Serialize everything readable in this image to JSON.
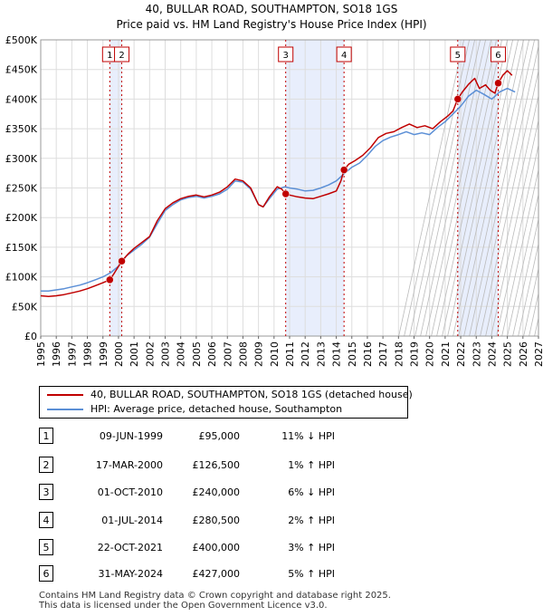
{
  "colors": {
    "price_line": "#c00000",
    "hpi_line": "#5b8fd6",
    "shade": "#e8eefc",
    "marker_fill": "#c00000"
  },
  "chart_data": {
    "type": "line",
    "title": "40, BULLAR ROAD, SOUTHAMPTON, SO18 1GS",
    "subtitle": "Price paid vs. HM Land Registry's House Price Index (HPI)",
    "xlim": [
      1995,
      2027
    ],
    "ylim": [
      0,
      500000
    ],
    "y_ticks": [
      0,
      50000,
      100000,
      150000,
      200000,
      250000,
      300000,
      350000,
      400000,
      450000,
      500000
    ],
    "y_tick_labels": [
      "£0",
      "£50K",
      "£100K",
      "£150K",
      "£200K",
      "£250K",
      "£300K",
      "£350K",
      "£400K",
      "£450K",
      "£500K"
    ],
    "x_ticks": [
      1995,
      1996,
      1997,
      1998,
      1999,
      2000,
      2001,
      2002,
      2003,
      2004,
      2005,
      2006,
      2007,
      2008,
      2009,
      2010,
      2011,
      2012,
      2013,
      2014,
      2015,
      2016,
      2017,
      2018,
      2019,
      2020,
      2021,
      2022,
      2023,
      2024,
      2025,
      2026,
      2027
    ],
    "x_tick_labels": [
      "1995",
      "1996",
      "1997",
      "1998",
      "1999",
      "2000",
      "2001",
      "2002",
      "2003",
      "2004",
      "2005",
      "2006",
      "2007",
      "2008",
      "2009",
      "2010",
      "2011",
      "2012",
      "2013",
      "2014",
      "2015",
      "2016",
      "2017",
      "2018",
      "2019",
      "2020",
      "2021",
      "2022",
      "2023",
      "2024",
      "2025",
      "2026",
      "2027"
    ],
    "grid": true,
    "forecast_start": 2025.0,
    "shaded_periods": [
      [
        1999.44,
        2000.21
      ],
      [
        2010.75,
        2014.5
      ],
      [
        2021.81,
        2024.41
      ]
    ],
    "series": [
      {
        "name": "40, BULLAR ROAD, SOUTHAMPTON, SO18 1GS (detached house)",
        "x": [
          1995.0,
          1995.5,
          1996.0,
          1996.5,
          1997.0,
          1997.5,
          1998.0,
          1998.5,
          1999.0,
          1999.44,
          1999.7,
          2000.21,
          2000.6,
          2001.0,
          2001.5,
          2002.0,
          2002.5,
          2003.0,
          2003.5,
          2004.0,
          2004.5,
          2005.0,
          2005.5,
          2006.0,
          2006.5,
          2007.0,
          2007.5,
          2008.0,
          2008.5,
          2009.0,
          2009.3,
          2009.7,
          2010.2,
          2010.5,
          2010.75,
          2011.0,
          2011.5,
          2012.0,
          2012.5,
          2013.0,
          2013.5,
          2014.0,
          2014.3,
          2014.5,
          2014.8,
          2015.2,
          2015.7,
          2016.2,
          2016.7,
          2017.2,
          2017.7,
          2018.2,
          2018.7,
          2019.2,
          2019.7,
          2020.2,
          2020.7,
          2021.2,
          2021.5,
          2021.81,
          2022.1,
          2022.5,
          2022.9,
          2023.2,
          2023.6,
          2023.9,
          2024.2,
          2024.41,
          2024.7,
          2025.0,
          2025.3
        ],
        "values": [
          68000,
          67000,
          68000,
          70000,
          73000,
          76000,
          80000,
          85000,
          90000,
          95000,
          105000,
          126500,
          138000,
          148000,
          158000,
          168000,
          195000,
          215000,
          225000,
          232000,
          236000,
          238000,
          235000,
          238000,
          243000,
          252000,
          265000,
          262000,
          250000,
          222000,
          218000,
          235000,
          252000,
          248000,
          240000,
          238000,
          235000,
          233000,
          232000,
          236000,
          240000,
          245000,
          262000,
          280500,
          290000,
          296000,
          305000,
          318000,
          335000,
          342000,
          345000,
          352000,
          358000,
          352000,
          355000,
          350000,
          362000,
          372000,
          380000,
          400000,
          412000,
          425000,
          435000,
          418000,
          424000,
          415000,
          410000,
          427000,
          440000,
          448000,
          440000
        ]
      },
      {
        "name": "HPI: Average price, detached house, Southampton",
        "x": [
          1995.0,
          1995.5,
          1996.0,
          1996.5,
          1997.0,
          1997.5,
          1998.0,
          1998.5,
          1999.0,
          1999.5,
          2000.0,
          2000.5,
          2001.0,
          2001.5,
          2002.0,
          2002.5,
          2003.0,
          2003.5,
          2004.0,
          2004.5,
          2005.0,
          2005.5,
          2006.0,
          2006.5,
          2007.0,
          2007.5,
          2008.0,
          2008.5,
          2009.0,
          2009.3,
          2009.7,
          2010.2,
          2010.7,
          2011.0,
          2011.5,
          2012.0,
          2012.5,
          2013.0,
          2013.5,
          2014.0,
          2014.5,
          2015.0,
          2015.5,
          2016.0,
          2016.5,
          2017.0,
          2017.5,
          2018.0,
          2018.5,
          2019.0,
          2019.5,
          2020.0,
          2020.5,
          2021.0,
          2021.5,
          2022.0,
          2022.5,
          2023.0,
          2023.5,
          2024.0,
          2024.5,
          2025.0,
          2025.5
        ],
        "values": [
          76000,
          76000,
          78000,
          80000,
          83000,
          86000,
          90000,
          95000,
          100000,
          107000,
          118000,
          135000,
          145000,
          155000,
          167000,
          190000,
          212000,
          222000,
          230000,
          234000,
          236000,
          233000,
          236000,
          240000,
          248000,
          262000,
          260000,
          248000,
          222000,
          218000,
          232000,
          248000,
          252000,
          250000,
          248000,
          245000,
          246000,
          250000,
          255000,
          262000,
          274000,
          285000,
          292000,
          305000,
          320000,
          330000,
          336000,
          340000,
          345000,
          340000,
          343000,
          340000,
          352000,
          362000,
          375000,
          388000,
          405000,
          415000,
          408000,
          400000,
          412000,
          418000,
          412000
        ]
      }
    ],
    "sale_points": [
      {
        "label": "1",
        "x": 1999.44,
        "value": 95000
      },
      {
        "label": "2",
        "x": 2000.21,
        "value": 126500
      },
      {
        "label": "3",
        "x": 2010.75,
        "value": 240000
      },
      {
        "label": "4",
        "x": 2014.5,
        "value": 280500
      },
      {
        "label": "5",
        "x": 2021.81,
        "value": 400000
      },
      {
        "label": "6",
        "x": 2024.41,
        "value": 427000
      }
    ]
  },
  "legend": {
    "price_label": "40, BULLAR ROAD, SOUTHAMPTON, SO18 1GS (detached house)",
    "hpi_label": "HPI: Average price, detached house, Southampton"
  },
  "sales": [
    {
      "num": "1",
      "date": "09-JUN-1999",
      "price": "£95,000",
      "hpi": "11% ↓ HPI"
    },
    {
      "num": "2",
      "date": "17-MAR-2000",
      "price": "£126,500",
      "hpi": "1% ↑ HPI"
    },
    {
      "num": "3",
      "date": "01-OCT-2010",
      "price": "£240,000",
      "hpi": "6% ↓ HPI"
    },
    {
      "num": "4",
      "date": "01-JUL-2014",
      "price": "£280,500",
      "hpi": "2% ↑ HPI"
    },
    {
      "num": "5",
      "date": "22-OCT-2021",
      "price": "£400,000",
      "hpi": "3% ↑ HPI"
    },
    {
      "num": "6",
      "date": "31-MAY-2024",
      "price": "£427,000",
      "hpi": "5% ↑ HPI"
    }
  ],
  "footer": {
    "line1": "Contains HM Land Registry data © Crown copyright and database right 2025.",
    "line2": "This data is licensed under the Open Government Licence v3.0."
  }
}
